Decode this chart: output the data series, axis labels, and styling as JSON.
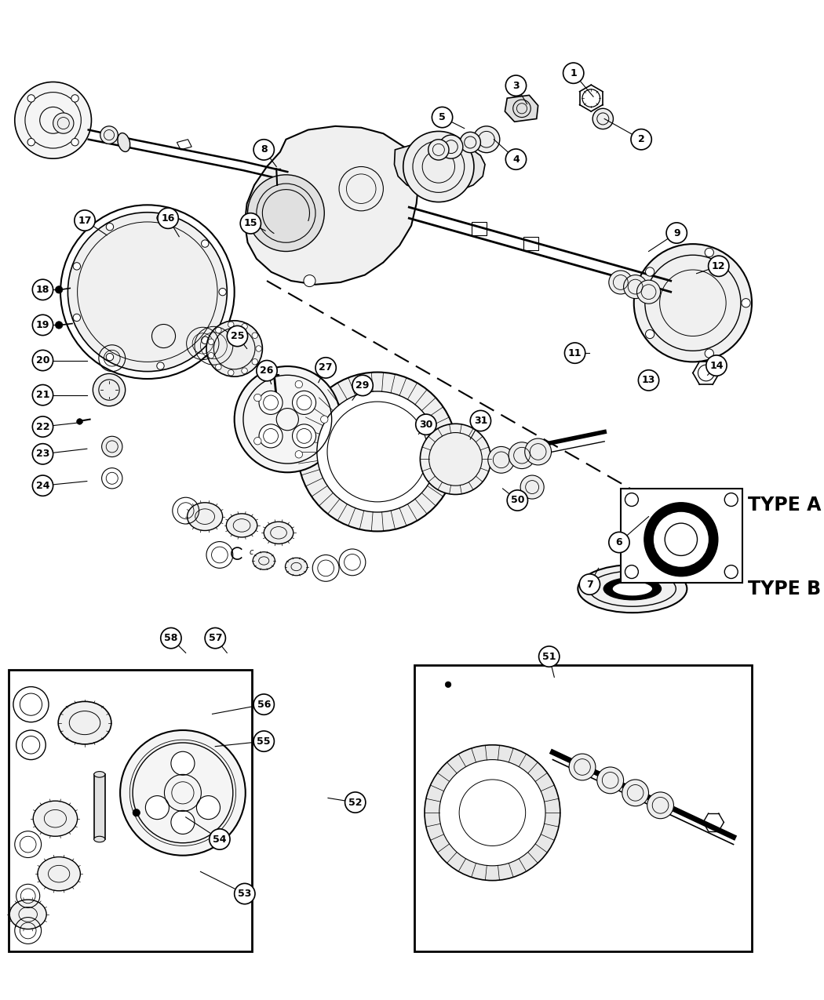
{
  "background_color": "#ffffff",
  "type_a_label": "TYPE A",
  "type_b_label": "TYPE B",
  "figsize": [
    10.5,
    12.75
  ],
  "dpi": 100,
  "callouts": [
    [
      1,
      778,
      58,
      805,
      90
    ],
    [
      2,
      870,
      148,
      820,
      120
    ],
    [
      3,
      700,
      75,
      715,
      100
    ],
    [
      4,
      700,
      175,
      670,
      148
    ],
    [
      5,
      600,
      118,
      630,
      133
    ],
    [
      6,
      840,
      695,
      880,
      660
    ],
    [
      7,
      800,
      752,
      812,
      730
    ],
    [
      8,
      358,
      162,
      375,
      185
    ],
    [
      9,
      918,
      275,
      880,
      300
    ],
    [
      11,
      780,
      438,
      800,
      438
    ],
    [
      12,
      975,
      320,
      945,
      330
    ],
    [
      13,
      880,
      475,
      882,
      480
    ],
    [
      14,
      972,
      455,
      960,
      468
    ],
    [
      15,
      340,
      262,
      360,
      272
    ],
    [
      16,
      228,
      255,
      243,
      280
    ],
    [
      17,
      115,
      258,
      145,
      278
    ],
    [
      18,
      58,
      352,
      82,
      352
    ],
    [
      19,
      58,
      400,
      82,
      400
    ],
    [
      20,
      58,
      448,
      118,
      448
    ],
    [
      21,
      58,
      495,
      118,
      495
    ],
    [
      22,
      58,
      538,
      112,
      532
    ],
    [
      23,
      58,
      575,
      118,
      568
    ],
    [
      24,
      58,
      618,
      118,
      612
    ],
    [
      25,
      322,
      415,
      335,
      432
    ],
    [
      26,
      362,
      462,
      368,
      480
    ],
    [
      27,
      442,
      458,
      432,
      478
    ],
    [
      29,
      492,
      482,
      478,
      502
    ],
    [
      30,
      578,
      535,
      568,
      548
    ],
    [
      31,
      652,
      530,
      638,
      555
    ],
    [
      50,
      702,
      638,
      682,
      622
    ],
    [
      51,
      745,
      850,
      752,
      878
    ],
    [
      52,
      482,
      1048,
      445,
      1042
    ],
    [
      53,
      332,
      1172,
      272,
      1142
    ],
    [
      54,
      298,
      1098,
      252,
      1068
    ],
    [
      55,
      358,
      965,
      292,
      972
    ],
    [
      56,
      358,
      915,
      288,
      928
    ],
    [
      57,
      292,
      825,
      308,
      845
    ],
    [
      58,
      232,
      825,
      252,
      845
    ]
  ]
}
